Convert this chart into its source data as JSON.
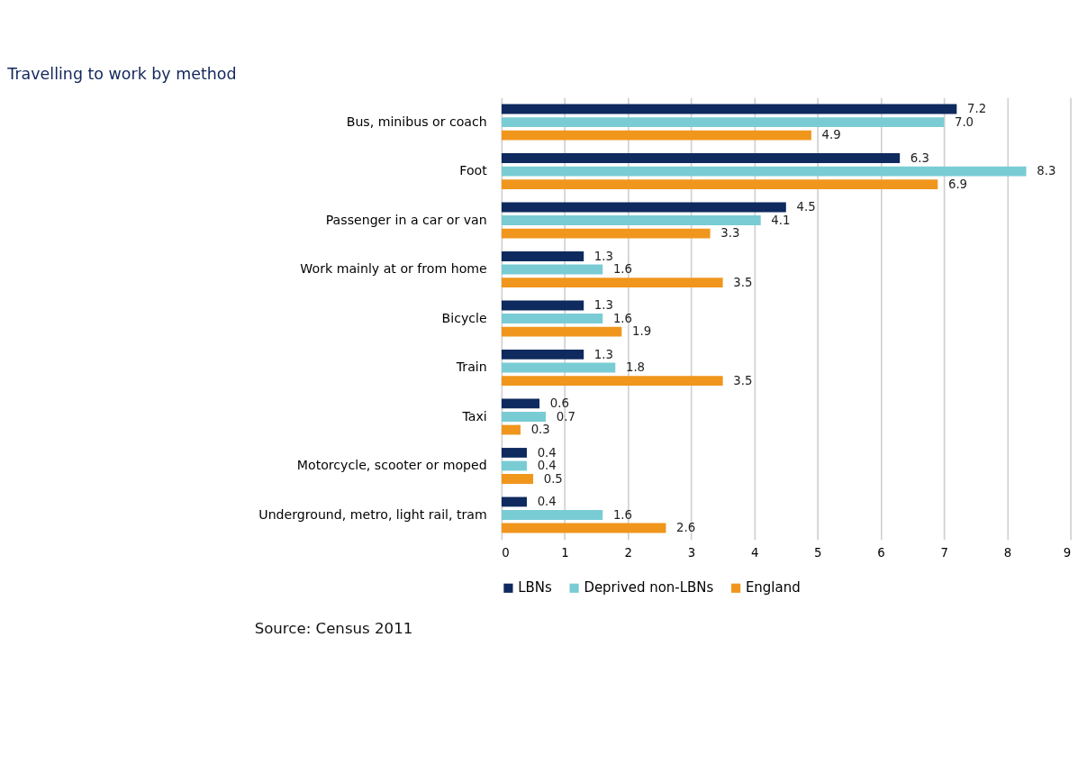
{
  "chart_data": {
    "type": "bar",
    "orientation": "horizontal",
    "title": "Travelling to work by method",
    "categories": [
      "Bus, minibus or coach",
      "Foot",
      "Passenger in a car or van",
      "Work mainly at or from home",
      "Bicycle",
      "Train",
      "Taxi",
      "Motorcycle, scooter or moped",
      "Underground, metro, light rail, tram"
    ],
    "series": [
      {
        "name": "LBNs",
        "color": "#0e2a5e",
        "values": [
          7.2,
          6.3,
          4.5,
          1.3,
          1.3,
          1.3,
          0.6,
          0.4,
          0.4
        ],
        "value_labels": [
          "7.2",
          "6.3",
          "4.5",
          "1.3",
          "1.3",
          "1.3",
          "0.6",
          "0.4",
          "0.4"
        ]
      },
      {
        "name": "Deprived non-LBNs",
        "color": "#79ccd3",
        "values": [
          7.0,
          8.3,
          4.1,
          1.6,
          1.6,
          1.8,
          0.7,
          0.4,
          1.6
        ],
        "value_labels": [
          "7.0",
          "8.3",
          "4.1",
          "1.6",
          "1.6",
          "1.8",
          "0.7",
          "0.4",
          "1.6"
        ]
      },
      {
        "name": "England",
        "color": "#f0961c",
        "values": [
          4.9,
          6.9,
          3.3,
          3.5,
          1.9,
          3.5,
          0.3,
          0.5,
          2.6
        ],
        "value_labels": [
          "4.9",
          "6.9",
          "3.3",
          "3.5",
          "1.9",
          "3.5",
          "0.3",
          "0.5",
          "2.6"
        ]
      }
    ],
    "xlim": [
      0,
      9
    ],
    "xticks": [
      0,
      1,
      2,
      3,
      4,
      5,
      6,
      7,
      8,
      9
    ],
    "grid": "x",
    "legend": "bottom",
    "annotations": [
      "Source: Census 2011"
    ]
  }
}
